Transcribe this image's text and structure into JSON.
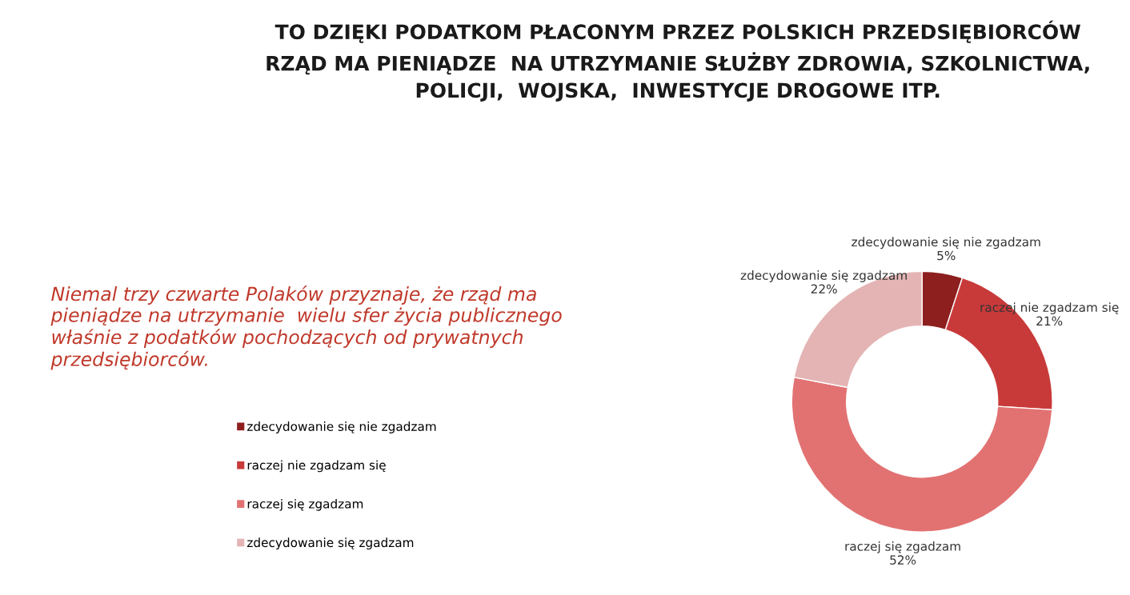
{
  "chart_data": {
    "type": "donut",
    "title": "TO DZIĘKI PODATKOM PŁACONYM PRZEZ POLSKICH PRZEDSIĘBIORCÓW\nRZĄD MA PIENIĄDZE  NA UTRZYMANIE SŁUŻBY ZDROWIA, SZKOLNICTWA,\nPOLICJI,  WOJSKA,  INWESTYCJE DROGOWE ITP.",
    "categories": [
      "zdecydowanie się nie zgadzam",
      "raczej nie zgadzam się",
      "raczej się zgadzam",
      "zdecydowanie się zgadzam"
    ],
    "values": [
      5,
      21,
      52,
      22
    ],
    "colors": [
      "#8e1f1f",
      "#c83a3a",
      "#e27272",
      "#e4b4b4"
    ],
    "value_labels": [
      "5%",
      "21%",
      "52%",
      "22%"
    ],
    "legend": "left",
    "annotations": [
      "Niemal trzy czwarte Polaków przyznaje, że rząd ma\npieniądze na utrzymanie  wielu sfer życia publicznego\nwłaśnie z podatków pochodzących od prywatnych\nprzedsiębiorców."
    ]
  }
}
